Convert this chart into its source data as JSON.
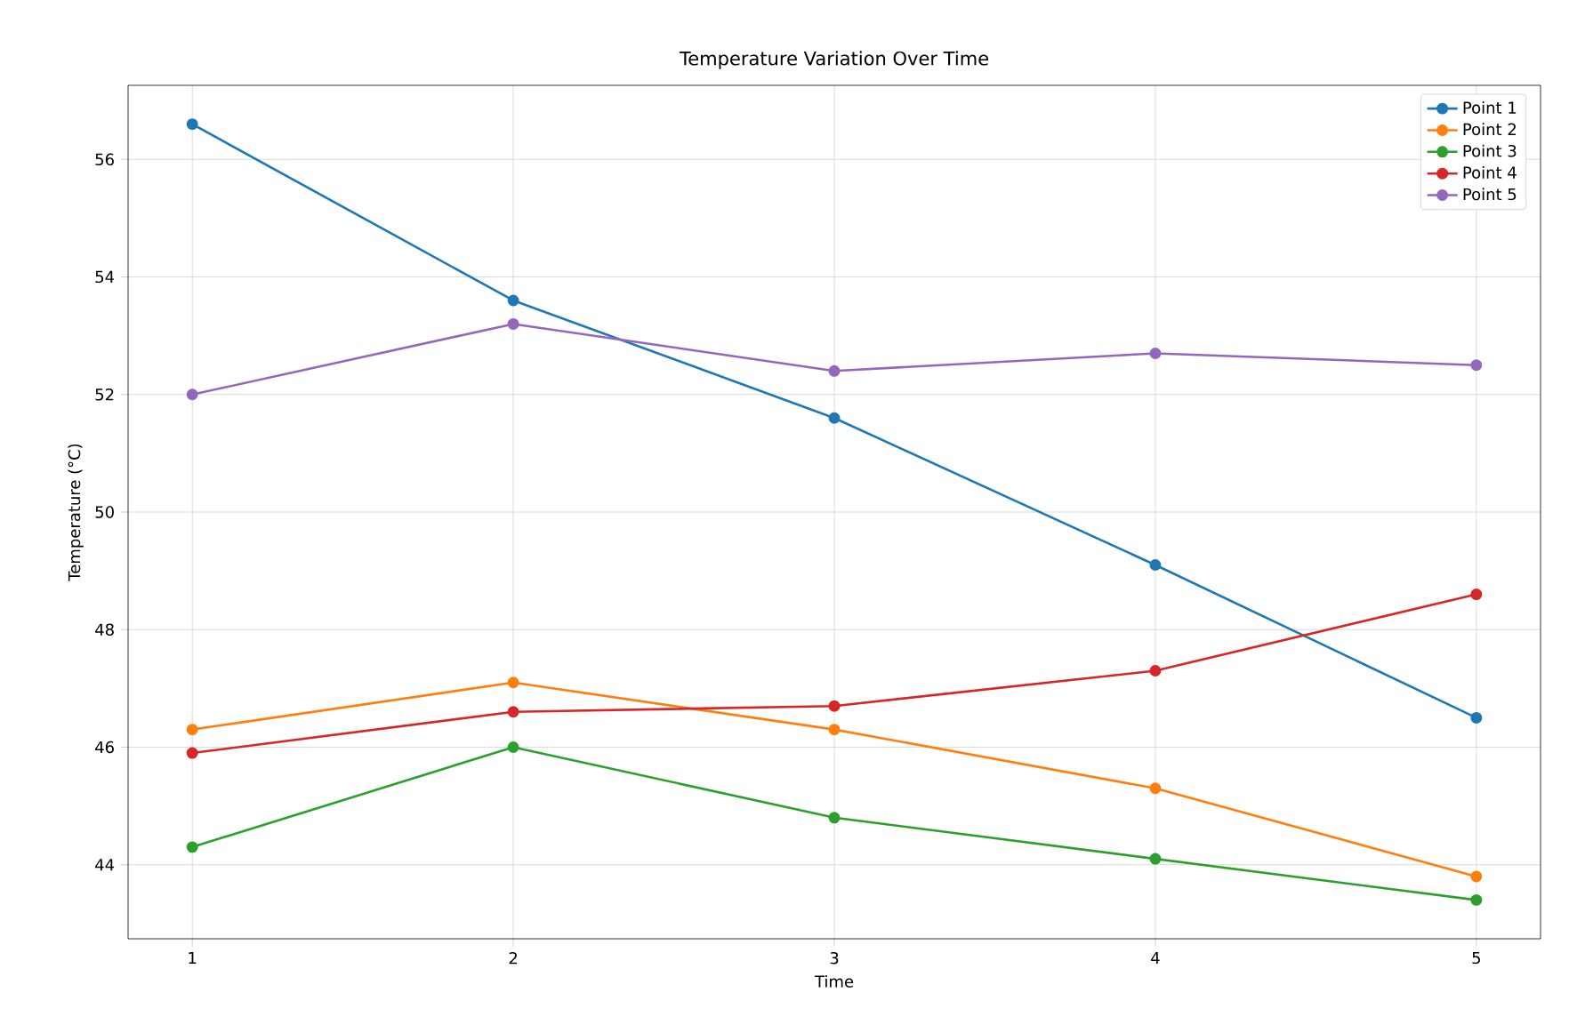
{
  "chart_data": {
    "type": "line",
    "title": "Temperature Variation Over Time",
    "xlabel": "Time",
    "ylabel": "Temperature (°C)",
    "x": [
      1,
      2,
      3,
      4,
      5
    ],
    "series": [
      {
        "name": "Point 1",
        "color": "#1f77b4",
        "values": [
          56.6,
          53.6,
          51.6,
          49.1,
          46.5
        ]
      },
      {
        "name": "Point 2",
        "color": "#ff7f0e",
        "values": [
          46.3,
          47.1,
          46.3,
          45.3,
          43.8
        ]
      },
      {
        "name": "Point 3",
        "color": "#2ca02c",
        "values": [
          44.3,
          46.0,
          44.8,
          44.1,
          43.4
        ]
      },
      {
        "name": "Point 4",
        "color": "#d62728",
        "values": [
          45.9,
          46.6,
          46.7,
          47.3,
          48.6
        ]
      },
      {
        "name": "Point 5",
        "color": "#9467bd",
        "values": [
          52.0,
          53.2,
          52.4,
          52.7,
          52.5
        ]
      }
    ],
    "xlim": [
      0.8,
      5.2
    ],
    "ylim": [
      42.74,
      57.26
    ],
    "xticks": [
      1,
      2,
      3,
      4,
      5
    ],
    "yticks": [
      44,
      46,
      48,
      50,
      52,
      54,
      56
    ],
    "grid": true,
    "legend": "top right",
    "marker": "circle",
    "line_style": "solid"
  }
}
